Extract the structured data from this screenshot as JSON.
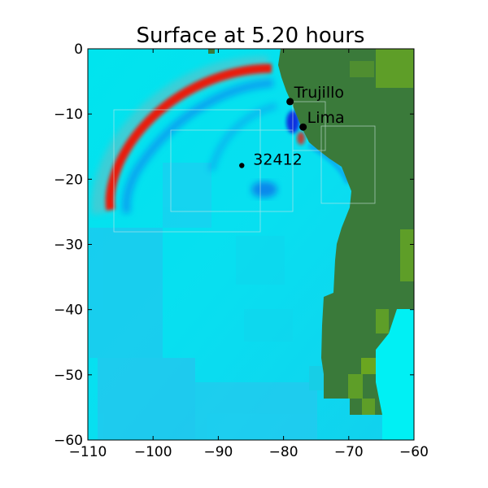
{
  "chart_data": {
    "type": "heatmap",
    "title": "Surface at 5.20 hours",
    "xlabel": "",
    "ylabel": "",
    "xlim": [
      -110,
      -60
    ],
    "ylim": [
      -60,
      0
    ],
    "xticks": [
      -110,
      -100,
      -90,
      -80,
      -70,
      -60
    ],
    "yticks": [
      0,
      -10,
      -20,
      -30,
      -40,
      -50,
      -60
    ],
    "xtick_labels": [
      "−110",
      "−100",
      "−90",
      "−80",
      "−70",
      "−60"
    ],
    "ytick_labels": [
      "0",
      "−10",
      "−20",
      "−30",
      "−40",
      "−50",
      "−60"
    ],
    "grid": false,
    "colors": {
      "ocean": "#00eaf0",
      "ocean_deep": "#1ec8f0",
      "land": "#3a7a3a",
      "land_light": "#5e9e28",
      "wave_crest": "#e81c10",
      "wave_trough": "#0a5cf0"
    },
    "points": [
      {
        "label": "Trujillo",
        "x": -79.0,
        "y": -8.1
      },
      {
        "label": "Lima",
        "x": -77.0,
        "y": -12.0
      },
      {
        "label": "32412",
        "x": -86.4,
        "y": -17.9
      }
    ]
  }
}
